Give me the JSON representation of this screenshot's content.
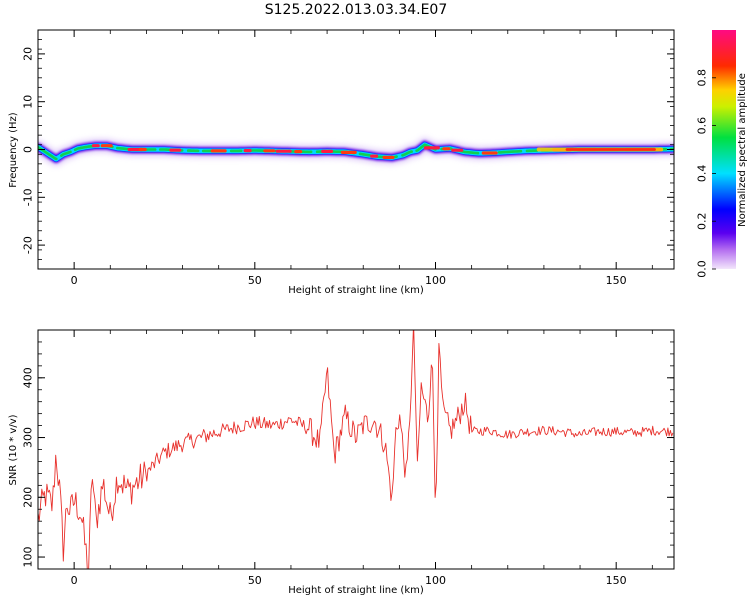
{
  "title": "S125.2022.013.03.34.E07",
  "chart_data": [
    {
      "type": "heatmap",
      "xlabel": "Height of straight line (km)",
      "ylabel": "Frequency (Hz)",
      "xlim": [
        -10,
        166
      ],
      "ylim": [
        -25,
        25
      ],
      "xticks": [
        0,
        50,
        100,
        150
      ],
      "yticks": [
        20,
        10,
        0,
        -10,
        -20
      ],
      "grid": false,
      "ridge": {
        "x": [
          -10,
          -7,
          -5,
          -3,
          -1,
          1,
          3,
          6,
          9,
          12,
          16,
          20,
          25,
          30,
          35,
          40,
          45,
          50,
          55,
          60,
          65,
          70,
          75,
          80,
          84,
          88,
          91,
          93,
          95,
          97,
          100,
          104,
          108,
          112,
          116,
          120,
          125,
          130,
          140,
          150,
          160,
          166
        ],
        "freq": [
          0.5,
          -1.0,
          -2.0,
          -1.0,
          -0.5,
          0.2,
          0.5,
          0.8,
          0.8,
          0.3,
          0.0,
          0.0,
          0.0,
          -0.2,
          -0.3,
          -0.3,
          -0.3,
          -0.2,
          -0.3,
          -0.4,
          -0.5,
          -0.4,
          -0.5,
          -1.0,
          -1.5,
          -1.7,
          -1.2,
          -0.5,
          -0.2,
          1.0,
          0.0,
          0.2,
          -0.5,
          -0.8,
          -0.7,
          -0.5,
          -0.3,
          -0.2,
          0.0,
          0.0,
          0.0,
          0.1
        ]
      },
      "colorbar": {
        "label": "Normalized spectral amplitude",
        "range": [
          0,
          1
        ],
        "ticks": [
          0.0,
          0.2,
          0.4,
          0.6,
          0.8
        ],
        "tick_labels": [
          "0.0",
          "0.2",
          "0.4",
          "0.6",
          "0.8"
        ],
        "colormap": "rainbow (violet → blue → cyan → green → yellow → red → magenta)"
      }
    },
    {
      "type": "line",
      "xlabel": "Height of straight line (km)",
      "ylabel": "SNR (10 * v/v)",
      "xlim": [
        -10,
        166
      ],
      "ylim": [
        80,
        480
      ],
      "xticks": [
        0,
        50,
        100,
        150
      ],
      "yticks": [
        100,
        200,
        300,
        400
      ],
      "line_color": "#e8312c",
      "grid": false,
      "series": [
        {
          "x": [
            -10,
            -8,
            -6,
            -5,
            -4,
            -3,
            -2,
            -1,
            0,
            1,
            2,
            3,
            4,
            5,
            6,
            8,
            10,
            12,
            15,
            20,
            25,
            30,
            35,
            40,
            45,
            50,
            55,
            60,
            65,
            68,
            70,
            72,
            75,
            78,
            80,
            83,
            86,
            88,
            89,
            90,
            92,
            94,
            95,
            96,
            98,
            99,
            100,
            101,
            102,
            104,
            106,
            108,
            110,
            115,
            120,
            125,
            130,
            135,
            140,
            145,
            150,
            155,
            160,
            166
          ],
          "y": [
            165,
            205,
            185,
            275,
            210,
            115,
            190,
            175,
            195,
            185,
            170,
            120,
            80,
            245,
            155,
            225,
            165,
            235,
            210,
            240,
            275,
            290,
            300,
            310,
            318,
            325,
            320,
            330,
            315,
            290,
            410,
            270,
            335,
            300,
            320,
            330,
            290,
            195,
            310,
            340,
            225,
            480,
            240,
            385,
            330,
            455,
            180,
            450,
            345,
            310,
            330,
            360,
            310,
            312,
            305,
            310,
            312,
            310,
            305,
            310,
            310,
            308,
            312,
            310
          ]
        }
      ]
    }
  ]
}
